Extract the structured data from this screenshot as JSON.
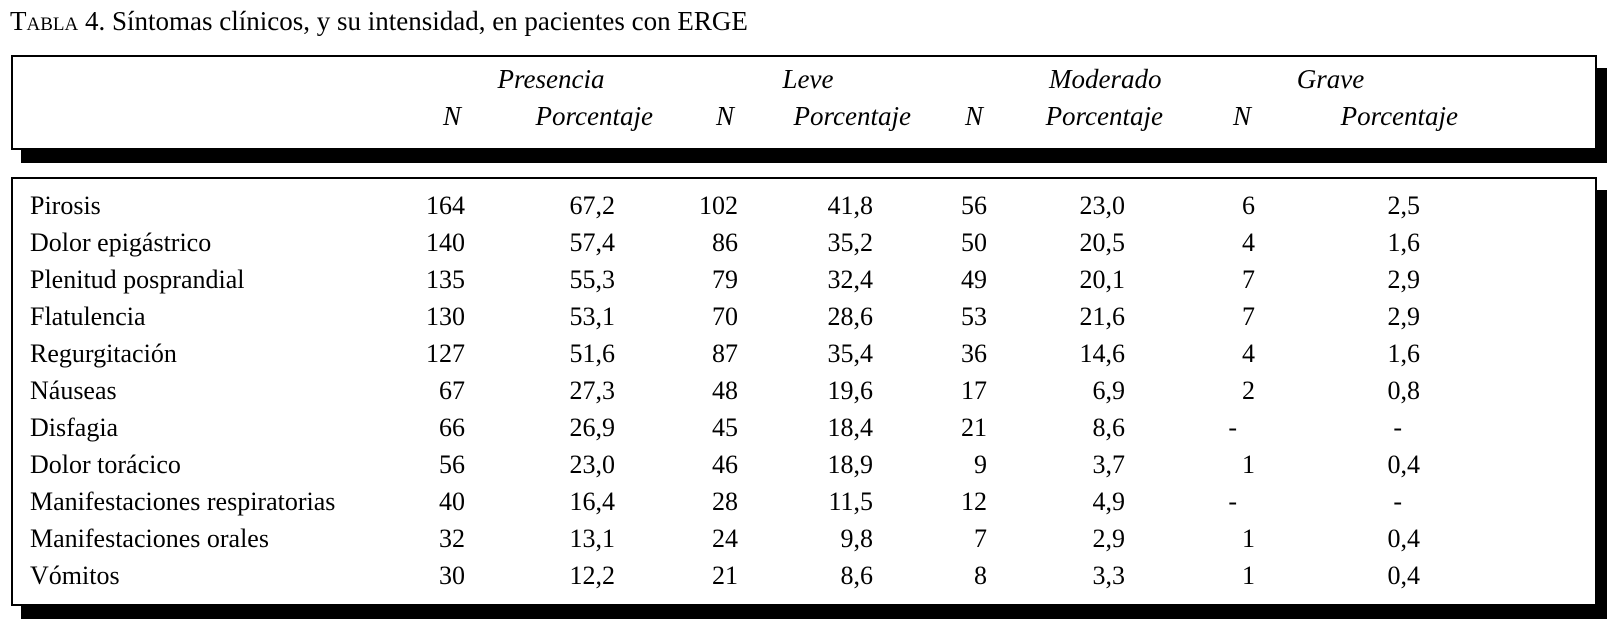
{
  "title": {
    "prefix": "Tabla",
    "text": " 4. Síntomas clínicos, y su intensidad, en pacientes con ERGE"
  },
  "table": {
    "groups": [
      {
        "label": "Presencia"
      },
      {
        "label": "Leve"
      },
      {
        "label": "Moderado"
      },
      {
        "label": "Grave"
      }
    ],
    "sub": {
      "n": "N",
      "pct": "Porcentaje"
    },
    "rows": [
      {
        "label": "Pirosis",
        "values": [
          "164",
          "67,2",
          "102",
          "41,8",
          "56",
          "23,0",
          "6",
          "2,5"
        ]
      },
      {
        "label": "Dolor epigástrico",
        "values": [
          "140",
          "57,4",
          "86",
          "35,2",
          "50",
          "20,5",
          "4",
          "1,6"
        ]
      },
      {
        "label": "Plenitud posprandial",
        "values": [
          "135",
          "55,3",
          "79",
          "32,4",
          "49",
          "20,1",
          "7",
          "2,9"
        ]
      },
      {
        "label": "Flatulencia",
        "values": [
          "130",
          "53,1",
          "70",
          "28,6",
          "53",
          "21,6",
          "7",
          "2,9"
        ]
      },
      {
        "label": "Regurgitación",
        "values": [
          "127",
          "51,6",
          "87",
          "35,4",
          "36",
          "14,6",
          "4",
          "1,6"
        ]
      },
      {
        "label": "Náuseas",
        "values": [
          "67",
          "27,3",
          "48",
          "19,6",
          "17",
          "6,9",
          "2",
          "0,8"
        ]
      },
      {
        "label": "Disfagia",
        "values": [
          "66",
          "26,9",
          "45",
          "18,4",
          "21",
          "8,6",
          "-",
          "-"
        ]
      },
      {
        "label": "Dolor torácico",
        "values": [
          "56",
          "23,0",
          "46",
          "18,9",
          "9",
          "3,7",
          "1",
          "0,4"
        ]
      },
      {
        "label": "Manifestaciones respiratorias",
        "values": [
          "40",
          "16,4",
          "28",
          "11,5",
          "12",
          "4,9",
          "-",
          "-"
        ]
      },
      {
        "label": "Manifestaciones orales",
        "values": [
          "32",
          "13,1",
          "24",
          "9,8",
          "7",
          "2,9",
          "1",
          "0,4"
        ]
      },
      {
        "label": "Vómitos",
        "values": [
          "30",
          "12,2",
          "21",
          "8,6",
          "8",
          "3,3",
          "1",
          "0,4"
        ]
      }
    ]
  }
}
